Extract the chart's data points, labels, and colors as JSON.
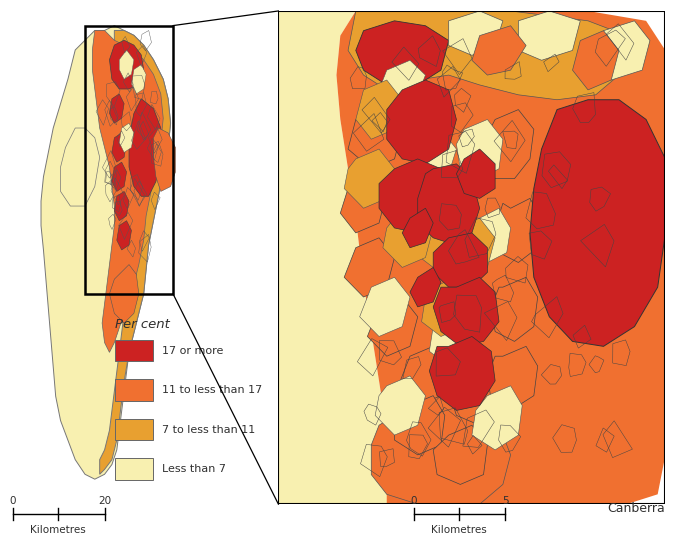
{
  "legend_title": "Per cent",
  "legend_labels": [
    "17 or more",
    "11 to less than 17",
    "7 to less than 11",
    "Less than 7"
  ],
  "legend_colors": [
    "#cc2222",
    "#f07030",
    "#e8a030",
    "#f8f0b0"
  ],
  "scalebar_unit": "Kilometres",
  "scalebar_left_max": "20",
  "scalebar_right_max": "5",
  "inset_label": "Canberra",
  "background_color": "#ffffff",
  "figsize": [
    6.79,
    5.48
  ],
  "dpi": 100
}
